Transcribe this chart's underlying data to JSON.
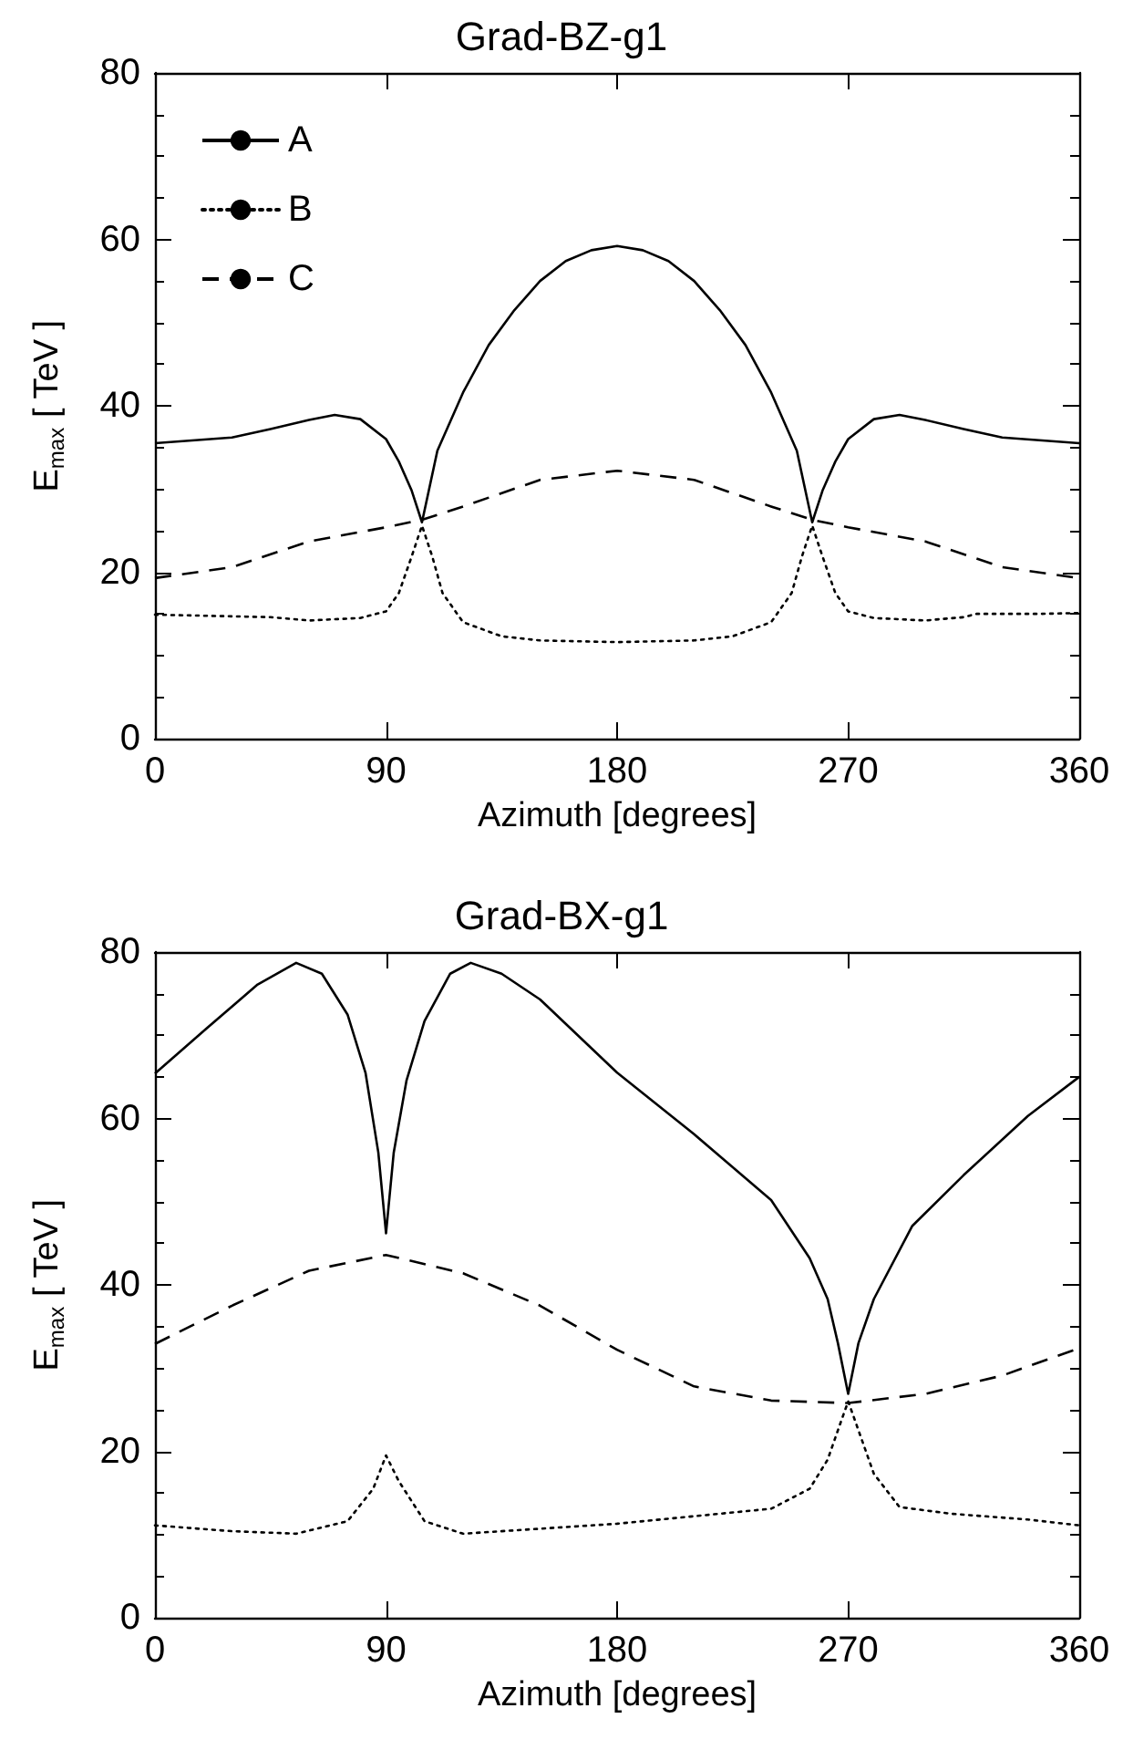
{
  "chart_data": [
    {
      "type": "line",
      "title": "Grad-BZ-g1",
      "xlabel": "Azimuth [degrees]",
      "ylabel": "E$_{max}$ [ TeV ]",
      "xlim": [
        0,
        360
      ],
      "ylim": [
        0,
        80
      ],
      "xticks": [
        0,
        90,
        180,
        270,
        360
      ],
      "yticks": [
        0,
        20,
        40,
        60,
        80
      ],
      "grid": false,
      "legend": "top left",
      "marker": "none",
      "series": [
        {
          "name": "A",
          "color": "#000000",
          "line_style": "solid",
          "x": [
            0,
            30,
            45,
            60,
            70,
            80,
            90,
            95,
            100,
            104,
            110,
            120,
            130,
            140,
            150,
            160,
            170,
            180,
            190,
            200,
            210,
            220,
            230,
            240,
            250,
            256,
            260,
            265,
            270,
            280,
            290,
            300,
            315,
            330,
            360
          ],
          "values": [
            35.5,
            36.2,
            37.2,
            38.3,
            38.9,
            38.4,
            36,
            33.3,
            29.8,
            26,
            34.6,
            41.6,
            47.3,
            51.5,
            55,
            57.4,
            58.7,
            59.2,
            58.7,
            57.4,
            55,
            51.5,
            47.3,
            41.6,
            34.6,
            26,
            29.8,
            33.3,
            36,
            38.4,
            38.9,
            38.3,
            37.2,
            36.2,
            35.5
          ]
        },
        {
          "name": "B",
          "color": "#000000",
          "line_style": "dotted",
          "x": [
            0,
            30,
            45,
            60,
            80,
            90,
            95,
            100,
            104,
            108,
            112,
            120,
            135,
            150,
            180,
            210,
            225,
            240,
            248,
            252,
            256,
            260,
            265,
            270,
            280,
            300,
            315,
            320,
            345,
            360
          ],
          "values": [
            14.9,
            14.7,
            14.6,
            14.2,
            14.5,
            15.3,
            17.5,
            21.9,
            25.6,
            21.9,
            17.5,
            14,
            12.3,
            11.8,
            11.6,
            11.8,
            12.3,
            14,
            17.5,
            21.9,
            25.6,
            21.9,
            17.5,
            15.3,
            14.5,
            14.2,
            14.6,
            15,
            15,
            15.1
          ]
        },
        {
          "name": "C",
          "color": "#000000",
          "line_style": "dashed",
          "x": [
            0,
            30,
            60,
            90,
            104,
            120,
            150,
            180,
            210,
            240,
            256,
            270,
            300,
            330,
            360
          ],
          "values": [
            19.3,
            20.6,
            23.7,
            25.4,
            26.3,
            27.9,
            31.1,
            32.2,
            31.1,
            27.9,
            26.3,
            25.4,
            23.7,
            20.6,
            19.3
          ]
        }
      ]
    },
    {
      "type": "line",
      "title": "Grad-BX-g1",
      "xlabel": "Azimuth [degrees]",
      "ylabel": "E$_{max}$ [ TeV ]",
      "xlim": [
        0,
        360
      ],
      "ylim": [
        0,
        80
      ],
      "xticks": [
        0,
        90,
        180,
        270,
        360
      ],
      "yticks": [
        0,
        20,
        40,
        60,
        80
      ],
      "grid": false,
      "marker": "none",
      "series": [
        {
          "color": "#000000",
          "line_style": "solid",
          "x": [
            0,
            20,
            40,
            55,
            65,
            75,
            82,
            87,
            90,
            93,
            98,
            105,
            115,
            123,
            135,
            150,
            180,
            210,
            240,
            255,
            262,
            266,
            270,
            274,
            280,
            295,
            315,
            340,
            360
          ],
          "values": [
            65.4,
            70.8,
            76.1,
            78.7,
            77.4,
            72.5,
            65.5,
            55.9,
            46.2,
            55.9,
            64.6,
            71.7,
            77.4,
            78.7,
            77.4,
            74.3,
            65.5,
            58.1,
            50.2,
            43.2,
            38.3,
            33,
            26.9,
            33,
            38.3,
            47.1,
            53.2,
            60.3,
            65
          ]
        },
        {
          "color": "#000000",
          "line_style": "dotted",
          "x": [
            0,
            30,
            55,
            75,
            85,
            90,
            95,
            105,
            120,
            150,
            180,
            210,
            240,
            255,
            262,
            267,
            270,
            273,
            280,
            290,
            310,
            340,
            360
          ],
          "values": [
            11.1,
            10.4,
            10.1,
            11.6,
            15.5,
            19.5,
            16.4,
            11.6,
            10.1,
            10.7,
            11.3,
            12.2,
            13.1,
            15.5,
            19,
            23.4,
            26,
            23.4,
            17.3,
            13.3,
            12.5,
            11.8,
            11.1
          ]
        },
        {
          "color": "#000000",
          "line_style": "dashed",
          "x": [
            0,
            30,
            60,
            90,
            120,
            150,
            180,
            210,
            240,
            270,
            300,
            330,
            360
          ],
          "values": [
            32.9,
            37.5,
            41.7,
            43.6,
            41.4,
            37.5,
            32.2,
            27.8,
            26.1,
            25.8,
            26.9,
            29.1,
            32.4
          ]
        }
      ]
    }
  ]
}
